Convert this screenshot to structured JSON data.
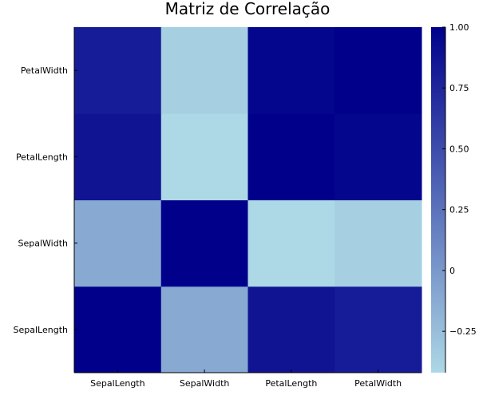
{
  "chart_data": {
    "type": "heatmap",
    "title": "Matriz de Correlação",
    "xlabel": "",
    "ylabel": "",
    "x_categories": [
      "SepalLength",
      "SepalWidth",
      "PetalLength",
      "PetalWidth"
    ],
    "y_categories": [
      "SepalLength",
      "SepalWidth",
      "PetalLength",
      "PetalWidth"
    ],
    "values": [
      [
        1.0,
        -0.11,
        0.87,
        0.82
      ],
      [
        -0.11,
        1.0,
        -0.42,
        -0.36
      ],
      [
        0.87,
        -0.42,
        1.0,
        0.96
      ],
      [
        0.82,
        -0.36,
        0.96,
        1.0
      ]
    ],
    "colorbar": {
      "min": -0.42,
      "max": 1.0,
      "ticks": [
        1.0,
        0.75,
        0.5,
        0.25,
        0,
        -0.25
      ],
      "tick_labels": [
        "1.00",
        "0.75",
        "0.50",
        "0.25",
        "0",
        "−0.25"
      ],
      "color_low": "#add8e6",
      "color_high": "#00008b"
    },
    "grid": false,
    "legend": "colorbar-right"
  }
}
